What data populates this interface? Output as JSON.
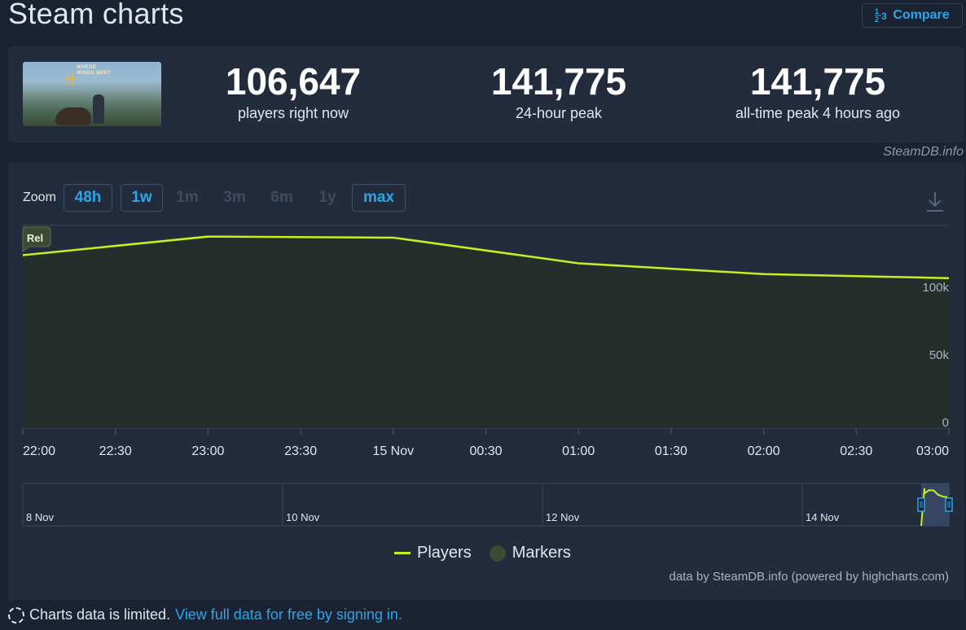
{
  "page": {
    "title": "Steam charts"
  },
  "header": {
    "compare_icon": "1/3 compare glyph",
    "compare_label": "Compare"
  },
  "stats": [
    {
      "value": "106,647",
      "label": "players right now"
    },
    {
      "value": "141,775",
      "label": "24-hour peak"
    },
    {
      "value": "141,775",
      "label": "all-time peak 4 hours ago"
    }
  ],
  "game": {
    "logo_line1": "WHERE",
    "logo_line2": "WINDS MEET"
  },
  "watermark": "SteamDB.info",
  "zoom": {
    "label": "Zoom",
    "buttons": [
      {
        "label": "48h",
        "state": "active"
      },
      {
        "label": "1w",
        "state": "active"
      },
      {
        "label": "1m",
        "state": "disabled"
      },
      {
        "label": "3m",
        "state": "disabled"
      },
      {
        "label": "6m",
        "state": "disabled"
      },
      {
        "label": "1y",
        "state": "disabled"
      },
      {
        "label": "max",
        "state": "active"
      }
    ]
  },
  "colors": {
    "line": "#c6f023",
    "marker": "#3d4a33",
    "accent": "#2aa6ea",
    "panel": "#232c3c",
    "bg": "#1b2333"
  },
  "chart_data": {
    "type": "line",
    "series": [
      {
        "name": "Players",
        "x": [
          "22:00",
          "23:00",
          "00:00",
          "01:00",
          "02:00",
          "03:00"
        ],
        "values": [
          128000,
          141775,
          141000,
          122000,
          114000,
          111000
        ]
      }
    ],
    "x_tick_labels": [
      "22:00",
      "22:30",
      "23:00",
      "23:30",
      "15 Nov",
      "00:30",
      "01:00",
      "01:30",
      "02:00",
      "02:30",
      "03:00"
    ],
    "y_tick_labels": [
      "0",
      "50k",
      "100k"
    ],
    "ylim": [
      0,
      150000
    ],
    "grid": true,
    "markers": [
      {
        "label": "Rel",
        "x": "22:00"
      }
    ],
    "navigator_labels": [
      "8 Nov",
      "10 Nov",
      "12 Nov",
      "14 Nov"
    ],
    "legend": [
      "Players",
      "Markers"
    ],
    "legend_position": "bottom-center"
  },
  "credit": "data by SteamDB.info (powered by highcharts.com)",
  "footer": {
    "text": "Charts data is limited.",
    "link": "View full data for free by signing in."
  }
}
